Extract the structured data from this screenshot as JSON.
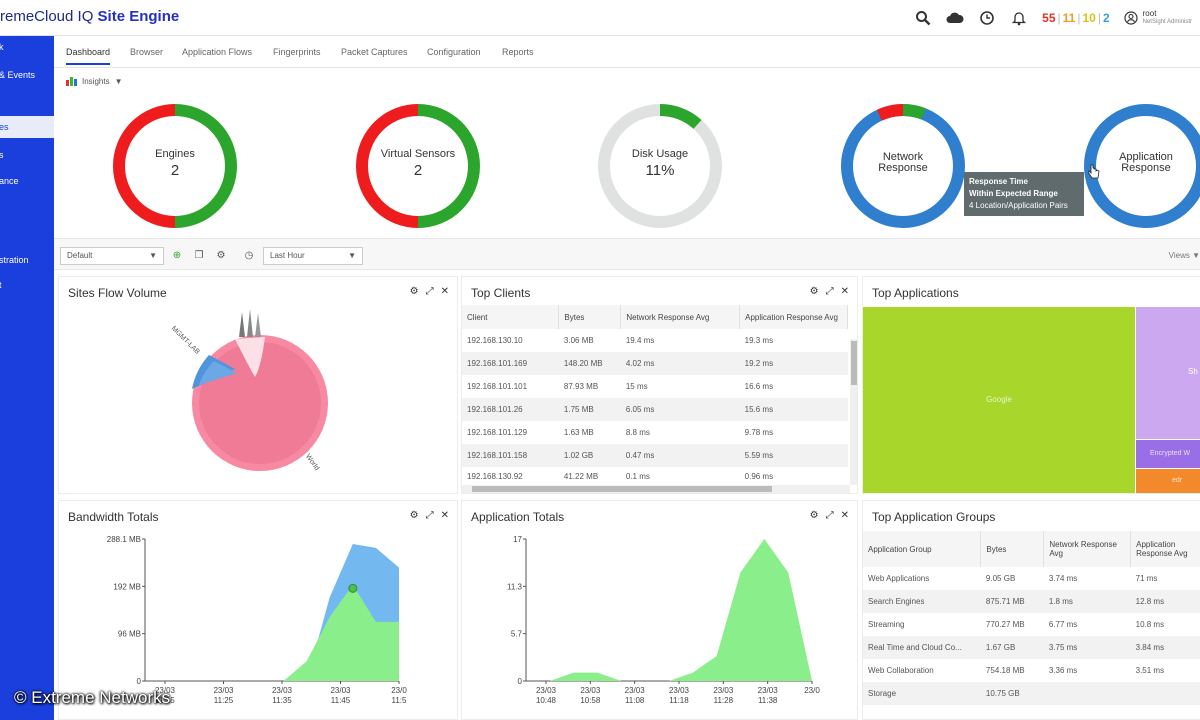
{
  "header": {
    "brand_prefix": "remeCloud IQ",
    "brand_product": "Site Engine",
    "alarm_counts": {
      "critical": "55",
      "major": "11",
      "minor": "10",
      "info": "2"
    },
    "user_name": "root",
    "user_role": "NetSight Administr"
  },
  "sidebar": {
    "items": [
      {
        "label": "k"
      },
      {
        "label": "& Events"
      },
      {
        "label": "es"
      },
      {
        "label": "s"
      },
      {
        "label": "ance"
      },
      {
        "label": "stration"
      },
      {
        "label": "t"
      }
    ]
  },
  "tabs": [
    "Dashboard",
    "Browser",
    "Application Flows",
    "Fingerprints",
    "Packet Captures",
    "Configuration",
    "Reports"
  ],
  "insights_label": "Insights",
  "donuts": {
    "engines": {
      "label": "Engines",
      "value": "2"
    },
    "virtual_sensors": {
      "label": "Virtual Sensors",
      "value": "2"
    },
    "disk_usage": {
      "label": "Disk Usage",
      "value": "11%"
    },
    "network_response": {
      "label": "Network Response"
    },
    "application_response": {
      "label": "Application Response"
    }
  },
  "tooltip": {
    "line1": "Response Time",
    "line2": "Within Expected Range",
    "line3": "4 Location/Application Pairs"
  },
  "filters": {
    "dashboard_select": "Default",
    "time_select": "Last Hour",
    "views_label": "Views"
  },
  "sites_flow_volume": {
    "title": "Sites Flow Volume",
    "labels": [
      "MGMT-LAB",
      "World"
    ]
  },
  "top_clients": {
    "title": "Top Clients",
    "columns": [
      "Client",
      "Bytes",
      "Network Response Avg",
      "Application Response Avg"
    ],
    "rows": [
      [
        "192.168.130.10",
        "3.06 MB",
        "19.4 ms",
        "19.3 ms"
      ],
      [
        "192.168.101.169",
        "148.20 MB",
        "4.02 ms",
        "19.2 ms"
      ],
      [
        "192.168.101.101",
        "87.93 MB",
        "15 ms",
        "16.6 ms"
      ],
      [
        "192.168.101.26",
        "1.75 MB",
        "6.05 ms",
        "15.6 ms"
      ],
      [
        "192.168.101.129",
        "1.63 MB",
        "8.8 ms",
        "9.78 ms"
      ],
      [
        "192.168.101.158",
        "1.02 GB",
        "0.47 ms",
        "5.59 ms"
      ],
      [
        "192.168.130.92",
        "41.22 MB",
        "0.1 ms",
        "0.96 ms"
      ]
    ]
  },
  "top_applications": {
    "title": "Top Applications",
    "cells": [
      "Google",
      "Sh",
      "Encrypted W",
      "edr"
    ]
  },
  "top_application_groups": {
    "title": "Top Application Groups",
    "columns": [
      "Application Group",
      "Bytes",
      "Network Response Avg",
      "Application Response Avg"
    ],
    "rows": [
      [
        "Web Applications",
        "9.05 GB",
        "3.74 ms",
        "71 ms"
      ],
      [
        "Search Engines",
        "875.71 MB",
        "1.8 ms",
        "12.8 ms"
      ],
      [
        "Streaming",
        "770.27 MB",
        "6.77 ms",
        "10.8 ms"
      ],
      [
        "Real Time and Cloud Co...",
        "1.67 GB",
        "3.75 ms",
        "3.84 ms"
      ],
      [
        "Web Collaboration",
        "754.18 MB",
        "3.36 ms",
        "3.51 ms"
      ],
      [
        "Storage",
        "10.75 GB",
        "",
        ""
      ]
    ]
  },
  "chart_data": [
    {
      "type": "area",
      "title": "Bandwidth Totals",
      "y_ticks": [
        "288.1 MB",
        "192 MB",
        "96 MB",
        "0"
      ],
      "ylim": [
        0,
        288.1
      ],
      "x_ticks": [
        [
          "23/03",
          "11:15"
        ],
        [
          "23/03",
          "11:25"
        ],
        [
          "23/03",
          "11:35"
        ],
        [
          "23/03",
          "11:45"
        ],
        [
          "23/0",
          "11:5"
        ]
      ],
      "x": [
        0,
        1,
        2,
        3,
        4,
        5,
        6,
        7,
        8,
        9,
        10,
        11
      ],
      "series": [
        {
          "values": [
            0,
            0,
            0,
            0,
            0,
            0,
            0,
            0,
            170,
            278,
            270,
            230
          ],
          "color": "#73b8ef"
        },
        {
          "values": [
            0,
            0,
            0,
            0,
            0,
            0,
            0,
            40,
            130,
            195,
            120,
            120
          ],
          "color": "#8aee8a"
        }
      ],
      "highlight_point": {
        "x": 9,
        "y": 188
      }
    },
    {
      "type": "area",
      "title": "Application Totals",
      "y_ticks": [
        "17",
        "11.3",
        "5.7",
        "0"
      ],
      "ylim": [
        0,
        17
      ],
      "x_ticks": [
        [
          "23/03",
          "10:48"
        ],
        [
          "23/03",
          "10:58"
        ],
        [
          "23/03",
          "11:08"
        ],
        [
          "23/03",
          "11:18"
        ],
        [
          "23/03",
          "11:28"
        ],
        [
          "23/03",
          "11:38"
        ],
        [
          "23/0",
          ""
        ]
      ],
      "x": [
        0,
        1,
        2,
        3,
        4,
        5,
        6,
        7,
        8,
        9,
        10,
        11,
        12
      ],
      "series": [
        {
          "values": [
            0,
            0,
            1,
            1,
            0,
            0,
            0,
            1,
            3,
            13,
            17,
            13,
            0
          ],
          "color": "#8aee8a"
        }
      ]
    }
  ]
}
